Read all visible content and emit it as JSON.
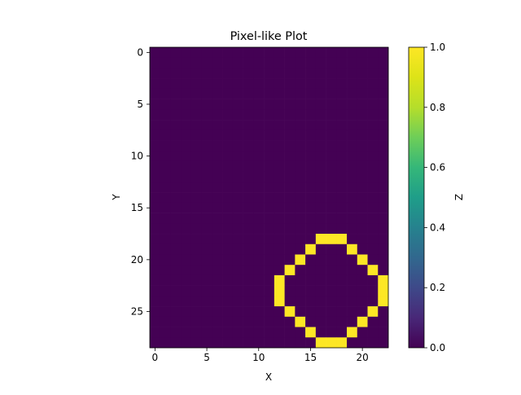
{
  "chart_data": {
    "type": "heatmap",
    "title": "Pixel-like Plot",
    "xlabel": "X",
    "ylabel": "Y",
    "colorbar_label": "Z",
    "colormap": "viridis",
    "colors": {
      "low": "#440154",
      "high": "#fde725"
    },
    "grid": false,
    "n_cols": 23,
    "n_rows": 29,
    "xlim": [
      -0.5,
      22.5
    ],
    "ylim": [
      28.5,
      -0.5
    ],
    "x_ticks": [
      0,
      5,
      10,
      15,
      20
    ],
    "y_ticks": [
      0,
      5,
      10,
      15,
      20,
      25
    ],
    "colorbar_range": [
      0.0,
      1.0
    ],
    "colorbar_ticks": [
      "0.0",
      "0.2",
      "0.4",
      "0.6",
      "0.8",
      "1.0"
    ],
    "default_value": 0,
    "ones": [
      [
        16,
        18
      ],
      [
        17,
        18
      ],
      [
        18,
        18
      ],
      [
        15,
        19
      ],
      [
        19,
        19
      ],
      [
        14,
        20
      ],
      [
        20,
        20
      ],
      [
        13,
        21
      ],
      [
        21,
        21
      ],
      [
        12,
        22
      ],
      [
        22,
        22
      ],
      [
        12,
        23
      ],
      [
        22,
        23
      ],
      [
        12,
        24
      ],
      [
        22,
        24
      ],
      [
        13,
        25
      ],
      [
        21,
        25
      ],
      [
        14,
        26
      ],
      [
        20,
        26
      ],
      [
        15,
        27
      ],
      [
        19,
        27
      ],
      [
        16,
        28
      ],
      [
        17,
        28
      ],
      [
        18,
        28
      ]
    ]
  }
}
